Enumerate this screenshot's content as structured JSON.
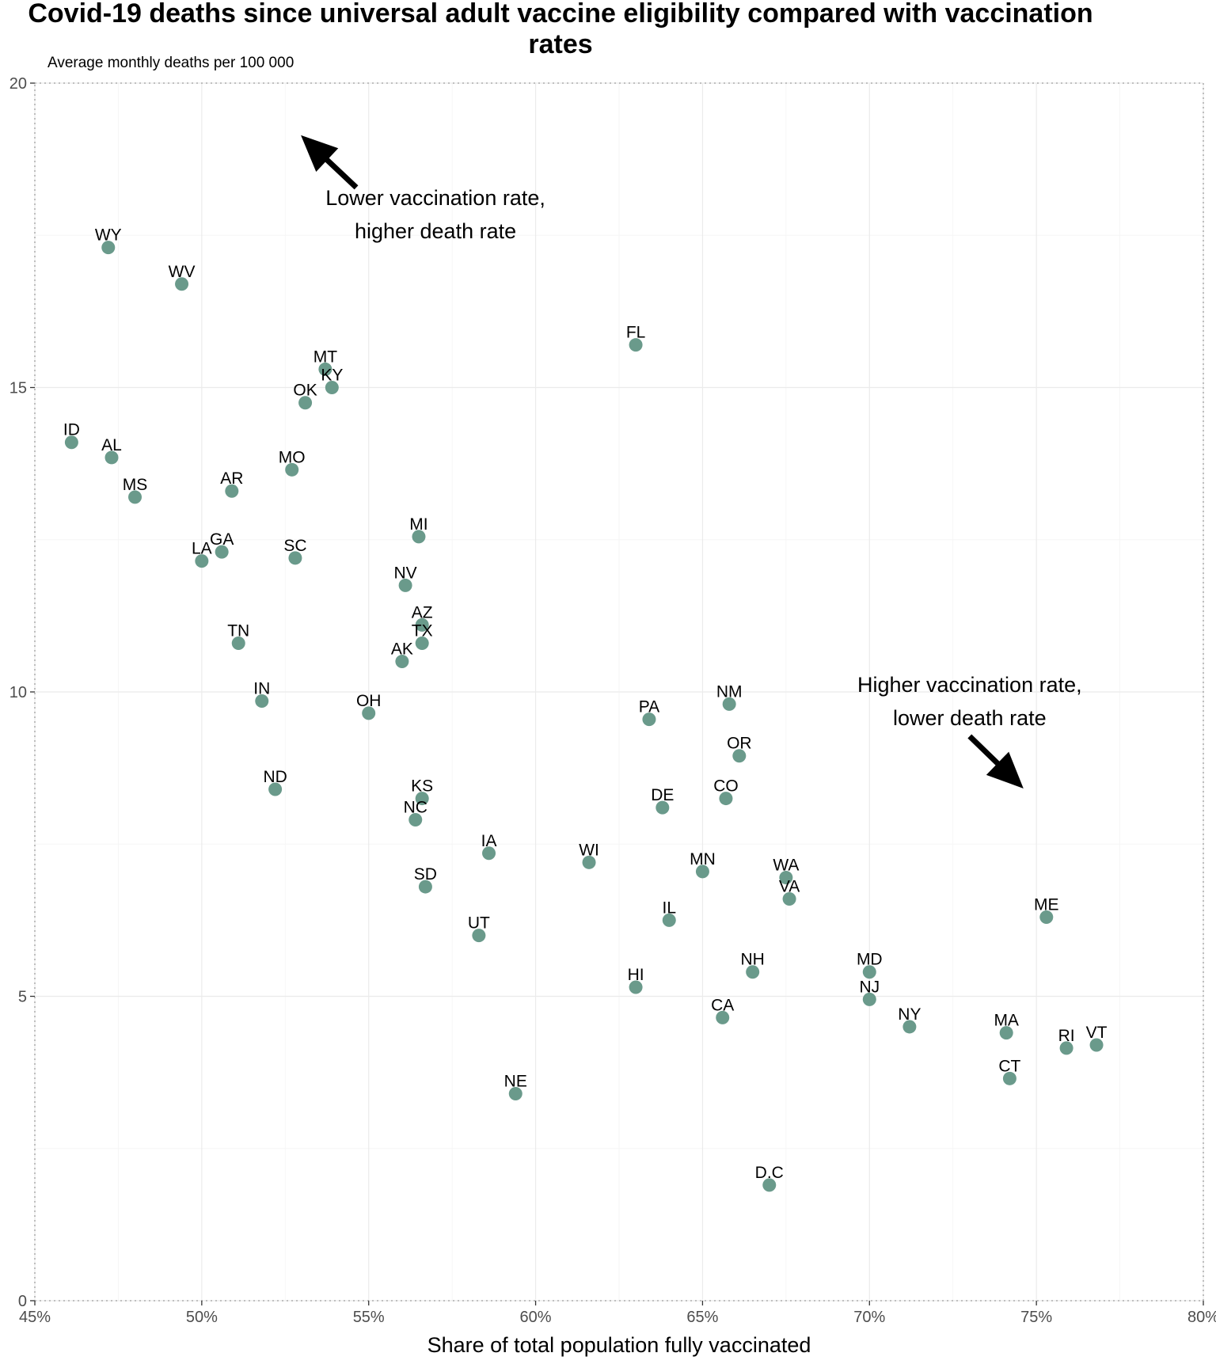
{
  "chart_data": {
    "type": "scatter",
    "title": "Covid-19 deaths since universal adult vaccine eligibility compared with vaccination rates",
    "subtitle": "Average monthly deaths per 100 000",
    "xlabel": "Share of total population fully vaccinated",
    "ylabel": "",
    "xlim": [
      45,
      80
    ],
    "ylim": [
      0,
      20
    ],
    "x_ticks": [
      45,
      50,
      55,
      60,
      65,
      70,
      75,
      80
    ],
    "x_tick_labels": [
      "45%",
      "50%",
      "55%",
      "60%",
      "65%",
      "70%",
      "75%",
      "80%"
    ],
    "y_ticks": [
      0,
      5,
      10,
      15,
      20
    ],
    "y_tick_labels": [
      "0",
      "5",
      "10",
      "15",
      "20"
    ],
    "grid": true,
    "point_color": "#6a9a8b",
    "points": [
      {
        "label": "WY",
        "x": 47.2,
        "y": 17.3
      },
      {
        "label": "WV",
        "x": 49.4,
        "y": 16.7
      },
      {
        "label": "FL",
        "x": 63.0,
        "y": 15.7
      },
      {
        "label": "MT",
        "x": 53.7,
        "y": 15.3
      },
      {
        "label": "KY",
        "x": 53.9,
        "y": 15.0
      },
      {
        "label": "OK",
        "x": 53.1,
        "y": 14.75
      },
      {
        "label": "ID",
        "x": 46.1,
        "y": 14.1
      },
      {
        "label": "AL",
        "x": 47.3,
        "y": 13.85
      },
      {
        "label": "MO",
        "x": 52.7,
        "y": 13.65
      },
      {
        "label": "MS",
        "x": 48.0,
        "y": 13.2
      },
      {
        "label": "AR",
        "x": 50.9,
        "y": 13.3
      },
      {
        "label": "MI",
        "x": 56.5,
        "y": 12.55
      },
      {
        "label": "GA",
        "x": 50.6,
        "y": 12.3
      },
      {
        "label": "LA",
        "x": 50.0,
        "y": 12.15
      },
      {
        "label": "SC",
        "x": 52.8,
        "y": 12.2
      },
      {
        "label": "NV",
        "x": 56.1,
        "y": 11.75
      },
      {
        "label": "AZ",
        "x": 56.6,
        "y": 11.1
      },
      {
        "label": "TX",
        "x": 56.6,
        "y": 10.8
      },
      {
        "label": "TN",
        "x": 51.1,
        "y": 10.8
      },
      {
        "label": "AK",
        "x": 56.0,
        "y": 10.5
      },
      {
        "label": "IN",
        "x": 51.8,
        "y": 9.85
      },
      {
        "label": "NM",
        "x": 65.8,
        "y": 9.8
      },
      {
        "label": "OH",
        "x": 55.0,
        "y": 9.65
      },
      {
        "label": "PA",
        "x": 63.4,
        "y": 9.55
      },
      {
        "label": "OR",
        "x": 66.1,
        "y": 8.95
      },
      {
        "label": "ND",
        "x": 52.2,
        "y": 8.4
      },
      {
        "label": "KS",
        "x": 56.6,
        "y": 8.25
      },
      {
        "label": "CO",
        "x": 65.7,
        "y": 8.25
      },
      {
        "label": "DE",
        "x": 63.8,
        "y": 8.1
      },
      {
        "label": "NC",
        "x": 56.4,
        "y": 7.9
      },
      {
        "label": "IA",
        "x": 58.6,
        "y": 7.35
      },
      {
        "label": "WI",
        "x": 61.6,
        "y": 7.2
      },
      {
        "label": "MN",
        "x": 65.0,
        "y": 7.05
      },
      {
        "label": "WA",
        "x": 67.5,
        "y": 6.95
      },
      {
        "label": "SD",
        "x": 56.7,
        "y": 6.8
      },
      {
        "label": "VA",
        "x": 67.6,
        "y": 6.6
      },
      {
        "label": "ME",
        "x": 75.3,
        "y": 6.3
      },
      {
        "label": "IL",
        "x": 64.0,
        "y": 6.25
      },
      {
        "label": "UT",
        "x": 58.3,
        "y": 6.0
      },
      {
        "label": "MD",
        "x": 70.0,
        "y": 5.4
      },
      {
        "label": "NH",
        "x": 66.5,
        "y": 5.4
      },
      {
        "label": "HI",
        "x": 63.0,
        "y": 5.15
      },
      {
        "label": "NJ",
        "x": 70.0,
        "y": 4.95
      },
      {
        "label": "CA",
        "x": 65.6,
        "y": 4.65
      },
      {
        "label": "NY",
        "x": 71.2,
        "y": 4.5
      },
      {
        "label": "MA",
        "x": 74.1,
        "y": 4.4
      },
      {
        "label": "VT",
        "x": 76.8,
        "y": 4.2
      },
      {
        "label": "RI",
        "x": 75.9,
        "y": 4.15
      },
      {
        "label": "CT",
        "x": 74.2,
        "y": 3.65
      },
      {
        "label": "NE",
        "x": 59.4,
        "y": 3.4
      },
      {
        "label": "D.C",
        "x": 67.0,
        "y": 1.9
      }
    ],
    "annotations": [
      {
        "lines": [
          "Lower vaccination rate,",
          "higher death rate"
        ],
        "x": 57.0,
        "y": 18.0,
        "arrow": "up-left"
      },
      {
        "lines": [
          "Higher vaccination rate,",
          "lower death rate"
        ],
        "x": 73.0,
        "y": 10.0,
        "arrow": "down-right"
      }
    ]
  }
}
